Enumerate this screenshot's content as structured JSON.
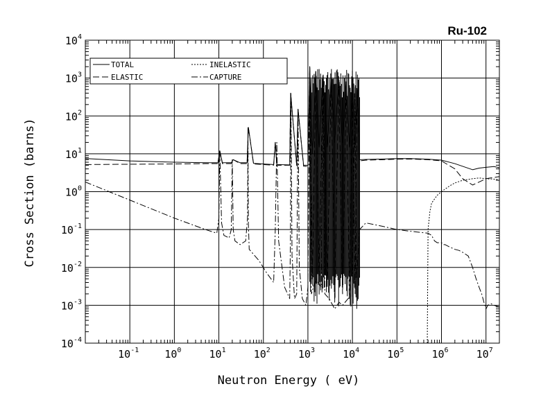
{
  "chart_data": {
    "type": "line",
    "title": "Ru-102",
    "xlabel": "Neutron Energy ( eV)",
    "ylabel": "Cross Section (barns)",
    "x_scale": "log",
    "y_scale": "log",
    "xlim": [
      0.01,
      20000000
    ],
    "ylim": [
      0.0001,
      10000
    ],
    "grid": true,
    "legend_position": "top-left",
    "x_ticks": [
      {
        "value": 0.1,
        "base": "10",
        "exp": "-1"
      },
      {
        "value": 1,
        "base": "10",
        "exp": "0"
      },
      {
        "value": 10,
        "base": "10",
        "exp": "1"
      },
      {
        "value": 100,
        "base": "10",
        "exp": "2"
      },
      {
        "value": 1000,
        "base": "10",
        "exp": "3"
      },
      {
        "value": 10000,
        "base": "10",
        "exp": "4"
      },
      {
        "value": 100000,
        "base": "10",
        "exp": "5"
      },
      {
        "value": 1000000,
        "base": "10",
        "exp": "6"
      },
      {
        "value": 10000000,
        "base": "10",
        "exp": "7"
      }
    ],
    "y_ticks": [
      {
        "value": 10000,
        "base": "10",
        "exp": "4"
      },
      {
        "value": 1000,
        "base": "10",
        "exp": "3"
      },
      {
        "value": 100,
        "base": "10",
        "exp": "2"
      },
      {
        "value": 10,
        "base": "10",
        "exp": "1"
      },
      {
        "value": 1,
        "base": "10",
        "exp": "0"
      },
      {
        "value": 0.1,
        "base": "10",
        "exp": "-1"
      },
      {
        "value": 0.01,
        "base": "10",
        "exp": "-2"
      },
      {
        "value": 0.001,
        "base": "10",
        "exp": "-3"
      },
      {
        "value": 0.0001,
        "base": "10",
        "exp": "-4"
      }
    ],
    "series": [
      {
        "name": "TOTAL",
        "dash": "solid",
        "x": [
          0.01,
          0.1,
          1,
          5,
          9.5,
          10.5,
          12,
          19,
          21,
          30,
          43,
          46,
          60,
          100,
          170,
          185,
          200,
          390,
          410,
          560,
          600,
          800,
          1000,
          1100,
          1250,
          1500,
          1800,
          2200,
          2700,
          3300,
          4000,
          5000,
          6000,
          7200,
          8500,
          10000,
          11500,
          13000,
          14500,
          20000,
          50000,
          100000,
          200000,
          500000,
          1000000,
          2000000,
          5000000,
          7000000,
          10000000,
          15000000,
          20000000
        ],
        "y": [
          7.5,
          6.5,
          6.0,
          5.8,
          5.8,
          12,
          5.8,
          5.8,
          7,
          5.8,
          5.8,
          50,
          5.6,
          5.4,
          5.2,
          20,
          5.2,
          5.1,
          400,
          5.0,
          150,
          5.0,
          5.0,
          2000,
          10,
          1500,
          15,
          1200,
          15,
          1000,
          20,
          900,
          20,
          800,
          15,
          700,
          15,
          500,
          7,
          7.1,
          7.3,
          7.5,
          7.5,
          7.2,
          6.8,
          5.5,
          3.8,
          4.2,
          4.4,
          4.6,
          4.3
        ]
      },
      {
        "name": "ELASTIC",
        "dash": "long-dash",
        "x": [
          0.01,
          0.1,
          1,
          5,
          9.5,
          10.5,
          12,
          19,
          21,
          30,
          43,
          46,
          60,
          100,
          170,
          185,
          200,
          390,
          410,
          560,
          600,
          800,
          1000,
          1100,
          1250,
          1500,
          1800,
          2200,
          2700,
          3300,
          4000,
          5000,
          6000,
          7200,
          8500,
          10000,
          11500,
          13000,
          14500,
          20000,
          50000,
          100000,
          200000,
          500000,
          1000000,
          2000000,
          3000000,
          5000000,
          7000000,
          10000000,
          20000000
        ],
        "y": [
          5.2,
          5.3,
          5.4,
          5.5,
          5.5,
          12,
          5.5,
          5.5,
          7,
          5.5,
          5.5,
          50,
          5.4,
          5.2,
          5.0,
          20,
          5.0,
          5.0,
          400,
          4.8,
          150,
          4.7,
          4.6,
          2000,
          0.005,
          1500,
          0.006,
          1200,
          0.003,
          1000,
          0.0012,
          900,
          0.002,
          800,
          0.0015,
          700,
          0.002,
          500,
          6.5,
          6.8,
          7.0,
          7.2,
          7.3,
          7.0,
          6.5,
          4.0,
          2.2,
          1.5,
          1.8,
          2.2,
          2.5
        ]
      },
      {
        "name": "INELASTIC",
        "dash": "short-dash",
        "x": [
          480000,
          500000,
          550000,
          600000,
          800000,
          1000000,
          1500000,
          2000000,
          3000000,
          5000000,
          7000000,
          10000000,
          20000000
        ],
        "y": [
          0.0001,
          0.1,
          0.3,
          0.5,
          0.8,
          1.0,
          1.4,
          1.7,
          2.0,
          2.2,
          2.3,
          2.2,
          2.1
        ]
      },
      {
        "name": "CAPTURE",
        "dash": "dash-dot",
        "x": [
          0.01,
          0.1,
          1,
          5,
          9,
          10,
          10.5,
          11.5,
          13,
          17,
          19,
          20,
          21,
          23,
          30,
          40,
          44,
          45,
          46,
          48,
          55,
          80,
          120,
          170,
          185,
          200,
          220,
          300,
          390,
          405,
          415,
          440,
          500,
          560,
          600,
          640,
          750,
          900,
          1000,
          1100,
          1200,
          1500,
          2000,
          2200,
          2400,
          3000,
          4000,
          5000,
          6000,
          8000,
          10000,
          11500,
          12500,
          14500,
          20000,
          50000,
          100000,
          200000,
          500000,
          600000,
          700000,
          800000,
          1000000,
          1100000,
          1200000,
          1500000,
          2000000,
          2500000,
          3000000,
          4000000,
          5000000,
          6000000,
          7000000,
          8000000,
          9000000,
          10000000,
          11000000,
          13000000,
          15000000,
          20000000
        ],
        "y": [
          1.8,
          0.6,
          0.2,
          0.1,
          0.08,
          0.2,
          12,
          0.15,
          0.07,
          0.06,
          0.1,
          7,
          0.1,
          0.05,
          0.04,
          0.05,
          0.2,
          50,
          0.15,
          0.03,
          0.025,
          0.015,
          0.007,
          0.004,
          0.1,
          20,
          0.05,
          0.003,
          0.0015,
          0.05,
          400,
          0.02,
          0.0015,
          0.002,
          150,
          0.01,
          0.0015,
          0.001,
          0.003,
          2000,
          0.002,
          0.005,
          0.003,
          1200,
          0.002,
          0.0015,
          0.0008,
          0.0012,
          0.001,
          0.0015,
          0.002,
          600,
          0.005,
          0.1,
          0.15,
          0.12,
          0.1,
          0.09,
          0.08,
          0.07,
          0.05,
          0.045,
          0.045,
          0.04,
          0.04,
          0.035,
          0.03,
          0.028,
          0.025,
          0.02,
          0.01,
          0.005,
          0.003,
          0.002,
          0.0012,
          0.0008,
          0.001,
          0.0011,
          0.001,
          0.0009
        ]
      }
    ]
  }
}
